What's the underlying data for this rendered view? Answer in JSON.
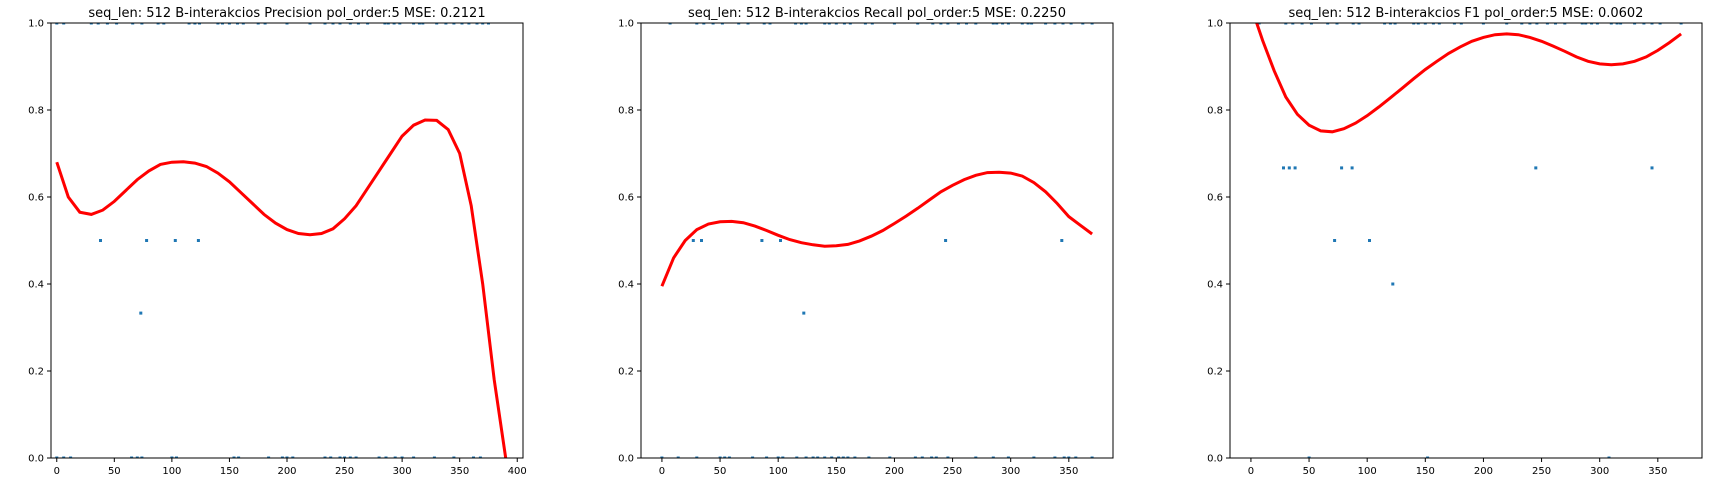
{
  "chart_data": [
    {
      "type": "scatter",
      "title": "seq_len: 512    B-interakcios   Precision   pol_order:5   MSE: 0.2121",
      "xlim": [
        -5,
        405
      ],
      "ylim": [
        0,
        1
      ],
      "xticks": [
        0,
        50,
        100,
        150,
        200,
        250,
        300,
        350,
        400
      ],
      "yticks": [
        0.0,
        0.2,
        0.4,
        0.6,
        0.8,
        1.0
      ],
      "grid": false,
      "point_color": "#1f77b4",
      "fit_color": "#ff0000",
      "points": [
        [
          0,
          1
        ],
        [
          6,
          1
        ],
        [
          30,
          1
        ],
        [
          36,
          1
        ],
        [
          44,
          1
        ],
        [
          52,
          1
        ],
        [
          66,
          1
        ],
        [
          74,
          1
        ],
        [
          88,
          1
        ],
        [
          93,
          1
        ],
        [
          115,
          1
        ],
        [
          120,
          1
        ],
        [
          124,
          1
        ],
        [
          140,
          1
        ],
        [
          144,
          1
        ],
        [
          150,
          1
        ],
        [
          157,
          1
        ],
        [
          162,
          1
        ],
        [
          175,
          1
        ],
        [
          181,
          1
        ],
        [
          200,
          1
        ],
        [
          220,
          1
        ],
        [
          233,
          1
        ],
        [
          240,
          1
        ],
        [
          246,
          1
        ],
        [
          255,
          1
        ],
        [
          262,
          1
        ],
        [
          270,
          1
        ],
        [
          285,
          1
        ],
        [
          288,
          1
        ],
        [
          293,
          1
        ],
        [
          298,
          1
        ],
        [
          310,
          1
        ],
        [
          315,
          1
        ],
        [
          318,
          1
        ],
        [
          330,
          1
        ],
        [
          338,
          1
        ],
        [
          345,
          1
        ],
        [
          352,
          1
        ],
        [
          358,
          1
        ],
        [
          365,
          1
        ],
        [
          370,
          1
        ],
        [
          375,
          1
        ],
        [
          38,
          0.5
        ],
        [
          78,
          0.5
        ],
        [
          103,
          0.5
        ],
        [
          123,
          0.5
        ],
        [
          73,
          0.333
        ],
        [
          0,
          0
        ],
        [
          6,
          0
        ],
        [
          12,
          0
        ],
        [
          65,
          0
        ],
        [
          70,
          0
        ],
        [
          74,
          0
        ],
        [
          100,
          0
        ],
        [
          104,
          0
        ],
        [
          154,
          0
        ],
        [
          158,
          0
        ],
        [
          184,
          0
        ],
        [
          196,
          0
        ],
        [
          200,
          0
        ],
        [
          205,
          0
        ],
        [
          233,
          0
        ],
        [
          238,
          0
        ],
        [
          246,
          0
        ],
        [
          250,
          0
        ],
        [
          255,
          0
        ],
        [
          260,
          0
        ],
        [
          280,
          0
        ],
        [
          286,
          0
        ],
        [
          294,
          0
        ],
        [
          300,
          0
        ],
        [
          310,
          0
        ],
        [
          328,
          0
        ],
        [
          345,
          0
        ],
        [
          362,
          0
        ],
        [
          368,
          0
        ]
      ],
      "fit": [
        [
          0,
          0.68
        ],
        [
          10,
          0.6
        ],
        [
          20,
          0.565
        ],
        [
          30,
          0.56
        ],
        [
          40,
          0.57
        ],
        [
          50,
          0.59
        ],
        [
          60,
          0.615
        ],
        [
          70,
          0.64
        ],
        [
          80,
          0.66
        ],
        [
          90,
          0.675
        ],
        [
          100,
          0.68
        ],
        [
          110,
          0.681
        ],
        [
          120,
          0.678
        ],
        [
          130,
          0.67
        ],
        [
          140,
          0.655
        ],
        [
          150,
          0.635
        ],
        [
          160,
          0.61
        ],
        [
          170,
          0.585
        ],
        [
          180,
          0.56
        ],
        [
          190,
          0.54
        ],
        [
          200,
          0.525
        ],
        [
          210,
          0.516
        ],
        [
          220,
          0.513
        ],
        [
          230,
          0.516
        ],
        [
          240,
          0.527
        ],
        [
          250,
          0.55
        ],
        [
          260,
          0.58
        ],
        [
          270,
          0.62
        ],
        [
          280,
          0.66
        ],
        [
          290,
          0.7
        ],
        [
          300,
          0.74
        ],
        [
          310,
          0.765
        ],
        [
          320,
          0.777
        ],
        [
          330,
          0.776
        ],
        [
          340,
          0.755
        ],
        [
          350,
          0.7
        ],
        [
          360,
          0.58
        ],
        [
          370,
          0.4
        ],
        [
          380,
          0.18
        ],
        [
          390,
          0.0
        ]
      ]
    },
    {
      "type": "scatter",
      "title": "seq_len: 512    B-interakcios   Recall   pol_order:5   MSE: 0.2250",
      "xlim": [
        -18,
        388
      ],
      "ylim": [
        0,
        1
      ],
      "xticks": [
        0,
        50,
        100,
        150,
        200,
        250,
        300,
        350
      ],
      "yticks": [
        0.0,
        0.2,
        0.4,
        0.6,
        0.8,
        1.0
      ],
      "grid": false,
      "point_color": "#1f77b4",
      "fit_color": "#ff0000",
      "points": [
        [
          7,
          1
        ],
        [
          30,
          1
        ],
        [
          36,
          1
        ],
        [
          44,
          1
        ],
        [
          52,
          1
        ],
        [
          66,
          1
        ],
        [
          74,
          1
        ],
        [
          88,
          1
        ],
        [
          93,
          1
        ],
        [
          115,
          1
        ],
        [
          120,
          1
        ],
        [
          124,
          1
        ],
        [
          140,
          1
        ],
        [
          144,
          1
        ],
        [
          150,
          1
        ],
        [
          157,
          1
        ],
        [
          162,
          1
        ],
        [
          175,
          1
        ],
        [
          181,
          1
        ],
        [
          200,
          1
        ],
        [
          220,
          1
        ],
        [
          233,
          1
        ],
        [
          240,
          1
        ],
        [
          246,
          1
        ],
        [
          255,
          1
        ],
        [
          262,
          1
        ],
        [
          270,
          1
        ],
        [
          285,
          1
        ],
        [
          288,
          1
        ],
        [
          293,
          1
        ],
        [
          298,
          1
        ],
        [
          310,
          1
        ],
        [
          315,
          1
        ],
        [
          318,
          1
        ],
        [
          330,
          1
        ],
        [
          338,
          1
        ],
        [
          345,
          1
        ],
        [
          352,
          1
        ],
        [
          362,
          1
        ],
        [
          370,
          1
        ],
        [
          27,
          0.5
        ],
        [
          34,
          0.5
        ],
        [
          86,
          0.5
        ],
        [
          102,
          0.5
        ],
        [
          244,
          0.5
        ],
        [
          344,
          0.5
        ],
        [
          122,
          0.333
        ],
        [
          0,
          0
        ],
        [
          14,
          0
        ],
        [
          30,
          0
        ],
        [
          50,
          0
        ],
        [
          54,
          0
        ],
        [
          58,
          0
        ],
        [
          78,
          0
        ],
        [
          90,
          0
        ],
        [
          100,
          0
        ],
        [
          104,
          0
        ],
        [
          116,
          0
        ],
        [
          124,
          0
        ],
        [
          130,
          0
        ],
        [
          134,
          0
        ],
        [
          140,
          0
        ],
        [
          146,
          0
        ],
        [
          152,
          0
        ],
        [
          156,
          0
        ],
        [
          160,
          0
        ],
        [
          166,
          0
        ],
        [
          178,
          0
        ],
        [
          196,
          0
        ],
        [
          218,
          0
        ],
        [
          224,
          0
        ],
        [
          232,
          0
        ],
        [
          236,
          0
        ],
        [
          246,
          0
        ],
        [
          270,
          0
        ],
        [
          285,
          0
        ],
        [
          298,
          0
        ],
        [
          320,
          0
        ],
        [
          338,
          0
        ],
        [
          346,
          0
        ],
        [
          350,
          0
        ],
        [
          356,
          0
        ],
        [
          370,
          0
        ]
      ],
      "fit": [
        [
          0,
          0.395
        ],
        [
          10,
          0.46
        ],
        [
          20,
          0.5
        ],
        [
          30,
          0.525
        ],
        [
          40,
          0.538
        ],
        [
          50,
          0.543
        ],
        [
          60,
          0.544
        ],
        [
          70,
          0.541
        ],
        [
          80,
          0.533
        ],
        [
          90,
          0.523
        ],
        [
          100,
          0.512
        ],
        [
          110,
          0.502
        ],
        [
          120,
          0.495
        ],
        [
          130,
          0.49
        ],
        [
          140,
          0.487
        ],
        [
          150,
          0.488
        ],
        [
          160,
          0.491
        ],
        [
          170,
          0.499
        ],
        [
          180,
          0.51
        ],
        [
          190,
          0.523
        ],
        [
          200,
          0.539
        ],
        [
          210,
          0.556
        ],
        [
          220,
          0.574
        ],
        [
          230,
          0.593
        ],
        [
          240,
          0.612
        ],
        [
          250,
          0.627
        ],
        [
          260,
          0.64
        ],
        [
          270,
          0.65
        ],
        [
          280,
          0.656
        ],
        [
          290,
          0.657
        ],
        [
          300,
          0.655
        ],
        [
          310,
          0.648
        ],
        [
          320,
          0.633
        ],
        [
          330,
          0.612
        ],
        [
          340,
          0.585
        ],
        [
          350,
          0.555
        ],
        [
          360,
          0.535
        ],
        [
          370,
          0.515
        ]
      ]
    },
    {
      "type": "scatter",
      "title": "seq_len: 512    B-interakcios    F1   pol_order:5   MSE: 0.0602",
      "xlim": [
        -18,
        388
      ],
      "ylim": [
        0,
        1
      ],
      "xticks": [
        0,
        50,
        100,
        150,
        200,
        250,
        300,
        350
      ],
      "yticks": [
        0.0,
        0.2,
        0.4,
        0.6,
        0.8,
        1.0
      ],
      "grid": false,
      "point_color": "#1f77b4",
      "fit_color": "#ff0000",
      "points": [
        [
          7,
          1
        ],
        [
          30,
          1
        ],
        [
          36,
          1
        ],
        [
          44,
          1
        ],
        [
          52,
          1
        ],
        [
          66,
          1
        ],
        [
          74,
          1
        ],
        [
          88,
          1
        ],
        [
          93,
          1
        ],
        [
          115,
          1
        ],
        [
          120,
          1
        ],
        [
          124,
          1
        ],
        [
          140,
          1
        ],
        [
          144,
          1
        ],
        [
          150,
          1
        ],
        [
          157,
          1
        ],
        [
          162,
          1
        ],
        [
          175,
          1
        ],
        [
          181,
          1
        ],
        [
          200,
          1
        ],
        [
          220,
          1
        ],
        [
          233,
          1
        ],
        [
          240,
          1
        ],
        [
          246,
          1
        ],
        [
          255,
          1
        ],
        [
          262,
          1
        ],
        [
          270,
          1
        ],
        [
          285,
          1
        ],
        [
          288,
          1
        ],
        [
          293,
          1
        ],
        [
          298,
          1
        ],
        [
          310,
          1
        ],
        [
          315,
          1
        ],
        [
          318,
          1
        ],
        [
          330,
          1
        ],
        [
          338,
          1
        ],
        [
          345,
          1
        ],
        [
          352,
          1
        ],
        [
          370,
          1
        ],
        [
          28,
          0.667
        ],
        [
          33,
          0.667
        ],
        [
          38,
          0.667
        ],
        [
          78,
          0.667
        ],
        [
          87,
          0.667
        ],
        [
          245,
          0.667
        ],
        [
          345,
          0.667
        ],
        [
          72,
          0.5
        ],
        [
          102,
          0.5
        ],
        [
          122,
          0.4
        ],
        [
          50,
          0
        ],
        [
          152,
          0
        ],
        [
          308,
          0
        ]
      ],
      "fit": [
        [
          5,
          1.0
        ],
        [
          10,
          0.96
        ],
        [
          20,
          0.89
        ],
        [
          30,
          0.83
        ],
        [
          40,
          0.79
        ],
        [
          50,
          0.765
        ],
        [
          60,
          0.752
        ],
        [
          70,
          0.75
        ],
        [
          80,
          0.757
        ],
        [
          90,
          0.77
        ],
        [
          100,
          0.787
        ],
        [
          110,
          0.807
        ],
        [
          120,
          0.828
        ],
        [
          130,
          0.85
        ],
        [
          140,
          0.872
        ],
        [
          150,
          0.893
        ],
        [
          160,
          0.912
        ],
        [
          170,
          0.93
        ],
        [
          180,
          0.945
        ],
        [
          190,
          0.958
        ],
        [
          200,
          0.967
        ],
        [
          210,
          0.973
        ],
        [
          220,
          0.975
        ],
        [
          230,
          0.973
        ],
        [
          240,
          0.967
        ],
        [
          250,
          0.958
        ],
        [
          260,
          0.947
        ],
        [
          270,
          0.935
        ],
        [
          280,
          0.922
        ],
        [
          290,
          0.912
        ],
        [
          300,
          0.906
        ],
        [
          310,
          0.904
        ],
        [
          320,
          0.906
        ],
        [
          330,
          0.912
        ],
        [
          340,
          0.922
        ],
        [
          350,
          0.937
        ],
        [
          360,
          0.955
        ],
        [
          370,
          0.975
        ]
      ]
    }
  ]
}
